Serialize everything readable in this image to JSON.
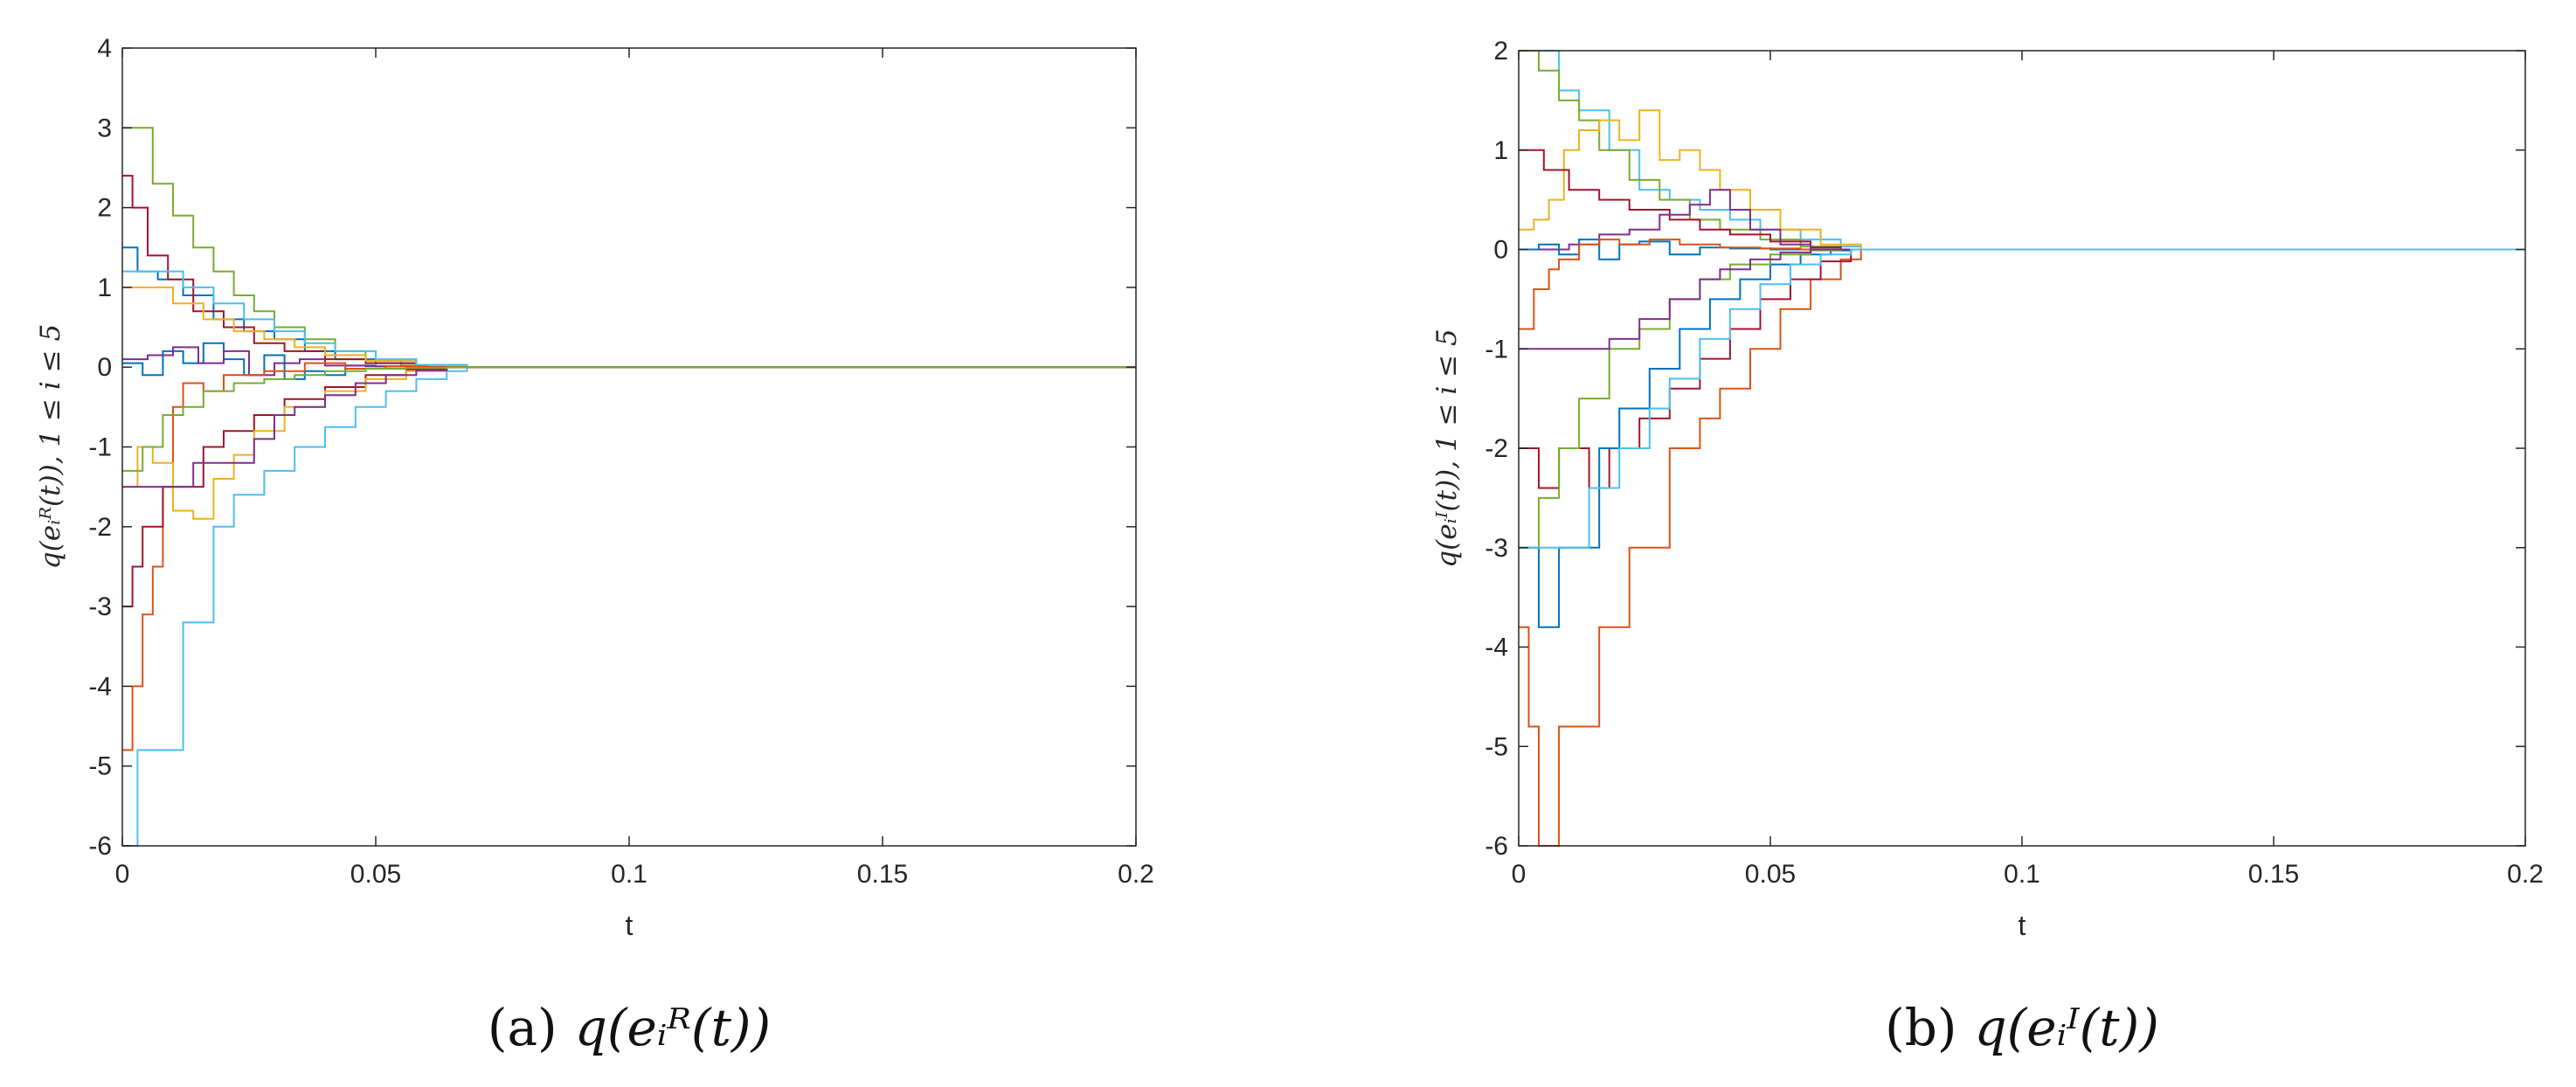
{
  "chart_data": [
    {
      "type": "line",
      "panel": "a",
      "caption_prefix": "(a)",
      "caption_math": "q(eᵢᴿ(t))",
      "xlabel": "t",
      "ylabel": "q(eᵢᴿ(t)), 1 ≤ i ≤ 5",
      "xlim": [
        0,
        0.2
      ],
      "ylim": [
        -6,
        4
      ],
      "xticks": [
        0,
        0.05,
        0.1,
        0.15,
        0.2
      ],
      "xtick_labels": [
        "0",
        "0.05",
        "0.1",
        "0.15",
        "0.2"
      ],
      "yticks": [
        4,
        3,
        2,
        1,
        0,
        -1,
        -2,
        -3,
        -4,
        -5,
        -6
      ],
      "ytick_labels": [
        "4",
        "3",
        "2",
        "1",
        "0",
        "-1",
        "-2",
        "-3",
        "-4",
        "-5",
        "-6"
      ],
      "series": [
        {
          "name": "s1",
          "color": "#77AC30",
          "x": [
            0,
            0.002,
            0.006,
            0.01,
            0.014,
            0.018,
            0.022,
            0.026,
            0.03,
            0.036,
            0.042,
            0.048,
            0.055,
            0.068,
            0.2
          ],
          "y": [
            3.0,
            3.0,
            2.3,
            1.9,
            1.5,
            1.2,
            0.9,
            0.7,
            0.5,
            0.35,
            0.2,
            0.08,
            0.02,
            0,
            0
          ]
        },
        {
          "name": "s2",
          "color": "#0072BD",
          "x": [
            0,
            0.003,
            0.007,
            0.012,
            0.018,
            0.024,
            0.03,
            0.036,
            0.042,
            0.05,
            0.058,
            0.068,
            0.2
          ],
          "y": [
            1.5,
            1.2,
            1.1,
            0.9,
            0.6,
            0.45,
            0.35,
            0.2,
            0.1,
            0.05,
            0.01,
            0,
            0
          ]
        },
        {
          "name": "s3",
          "color": "#A2142F",
          "x": [
            0,
            0.002,
            0.005,
            0.009,
            0.014,
            0.02,
            0.026,
            0.032,
            0.04,
            0.048,
            0.058,
            0.068,
            0.2
          ],
          "y": [
            2.4,
            2.0,
            1.4,
            1.1,
            0.7,
            0.5,
            0.3,
            0.2,
            0.1,
            0.05,
            0.01,
            0,
            0
          ]
        },
        {
          "name": "s4",
          "color": "#EDB120",
          "x": [
            0,
            0.004,
            0.01,
            0.016,
            0.022,
            0.028,
            0.034,
            0.04,
            0.048,
            0.058,
            0.068,
            0.2
          ],
          "y": [
            1.0,
            1.0,
            0.8,
            0.6,
            0.45,
            0.35,
            0.25,
            0.15,
            0.08,
            0.02,
            0,
            0
          ]
        },
        {
          "name": "s5",
          "color": "#4DBEEE",
          "x": [
            0,
            0.006,
            0.012,
            0.018,
            0.024,
            0.03,
            0.036,
            0.042,
            0.05,
            0.058,
            0.068,
            0.2
          ],
          "y": [
            1.2,
            1.2,
            1.0,
            0.8,
            0.6,
            0.45,
            0.3,
            0.2,
            0.1,
            0.03,
            0,
            0
          ]
        },
        {
          "name": "s6",
          "color": "#0072BD",
          "x": [
            0,
            0.004,
            0.008,
            0.012,
            0.016,
            0.02,
            0.024,
            0.028,
            0.032,
            0.036,
            0.04,
            0.044,
            0.05,
            0.058,
            0.2
          ],
          "y": [
            0.05,
            -0.1,
            0.2,
            0.05,
            0.3,
            0.1,
            -0.1,
            0.15,
            -0.15,
            -0.05,
            -0.1,
            0.02,
            0.01,
            0,
            0
          ]
        },
        {
          "name": "s7",
          "color": "#7E2F8E",
          "x": [
            0,
            0.005,
            0.01,
            0.015,
            0.02,
            0.025,
            0.03,
            0.035,
            0.04,
            0.048,
            0.056,
            0.2
          ],
          "y": [
            0.1,
            0.15,
            0.25,
            0.05,
            0.2,
            -0.1,
            0.05,
            0.1,
            0.02,
            0.01,
            0,
            0
          ]
        },
        {
          "name": "s8",
          "color": "#D95319",
          "x": [
            0,
            0.002,
            0.004,
            0.006,
            0.008,
            0.01,
            0.012,
            0.016,
            0.02,
            0.028,
            0.036,
            0.044,
            0.052,
            0.06,
            0.2
          ],
          "y": [
            -4.8,
            -4.0,
            -3.1,
            -2.5,
            -1.5,
            -0.5,
            -0.2,
            -0.3,
            -0.1,
            -0.05,
            0.05,
            -0.02,
            0.01,
            0,
            0
          ]
        },
        {
          "name": "s9",
          "color": "#4DBEEE",
          "x": [
            0,
            0.003,
            0.008,
            0.012,
            0.018,
            0.022,
            0.028,
            0.034,
            0.04,
            0.046,
            0.052,
            0.058,
            0.064,
            0.068,
            0.2
          ],
          "y": [
            -6.0,
            -4.8,
            -4.8,
            -3.2,
            -2.0,
            -1.6,
            -1.3,
            -1.0,
            -0.75,
            -0.5,
            -0.3,
            -0.15,
            -0.05,
            0,
            0
          ]
        },
        {
          "name": "s10",
          "color": "#A2142F",
          "x": [
            0,
            0.002,
            0.004,
            0.008,
            0.012,
            0.016,
            0.02,
            0.026,
            0.032,
            0.04,
            0.048,
            0.056,
            0.064,
            0.2
          ],
          "y": [
            -3.0,
            -2.5,
            -2.0,
            -1.5,
            -1.5,
            -1.0,
            -0.8,
            -0.6,
            -0.4,
            -0.25,
            -0.1,
            -0.03,
            0,
            0
          ]
        },
        {
          "name": "s11",
          "color": "#EDB120",
          "x": [
            0,
            0.003,
            0.006,
            0.01,
            0.014,
            0.018,
            0.022,
            0.026,
            0.032,
            0.04,
            0.048,
            0.056,
            0.064,
            0.2
          ],
          "y": [
            -1.5,
            -1.0,
            -1.2,
            -1.8,
            -1.9,
            -1.4,
            -1.1,
            -0.8,
            -0.5,
            -0.3,
            -0.15,
            -0.05,
            0,
            0
          ]
        },
        {
          "name": "s12",
          "color": "#7E2F8E",
          "x": [
            0,
            0.008,
            0.014,
            0.02,
            0.026,
            0.03,
            0.034,
            0.04,
            0.046,
            0.052,
            0.058,
            0.064,
            0.2
          ],
          "y": [
            -1.5,
            -1.5,
            -1.2,
            -1.2,
            -0.9,
            -0.6,
            -0.5,
            -0.35,
            -0.2,
            -0.1,
            -0.04,
            0,
            0
          ]
        },
        {
          "name": "s13",
          "color": "#77AC30",
          "x": [
            0,
            0.004,
            0.008,
            0.012,
            0.016,
            0.022,
            0.028,
            0.034,
            0.04,
            0.048,
            0.056,
            0.064,
            0.2
          ],
          "y": [
            -1.3,
            -1.0,
            -0.6,
            -0.5,
            -0.3,
            -0.2,
            -0.15,
            -0.1,
            -0.05,
            -0.02,
            -0.01,
            0,
            0
          ]
        }
      ]
    },
    {
      "type": "line",
      "panel": "b",
      "caption_prefix": "(b)",
      "caption_math": "q(eᵢᴵ(t))",
      "xlabel": "t",
      "ylabel": "q(eᵢᴵ(t)), 1 ≤ i ≤ 5",
      "xlim": [
        0,
        0.2
      ],
      "ylim": [
        -6,
        2
      ],
      "xticks": [
        0,
        0.05,
        0.1,
        0.15,
        0.2
      ],
      "xtick_labels": [
        "0",
        "0.05",
        "0.1",
        "0.15",
        "0.2"
      ],
      "yticks": [
        2,
        1,
        0,
        -1,
        -2,
        -3,
        -4,
        -5,
        -6
      ],
      "ytick_labels": [
        "2",
        "1",
        "0",
        "-1",
        "-2",
        "-3",
        "-4",
        "-5",
        "-6"
      ],
      "series": [
        {
          "name": "s1",
          "color": "#4DBEEE",
          "x": [
            0,
            0.004,
            0.008,
            0.012,
            0.018,
            0.024,
            0.03,
            0.036,
            0.042,
            0.048,
            0.056,
            0.064,
            0.068,
            0.2
          ],
          "y": [
            2.0,
            2.0,
            1.6,
            1.4,
            1.0,
            0.6,
            0.5,
            0.4,
            0.3,
            0.2,
            0.1,
            0.03,
            0,
            0
          ]
        },
        {
          "name": "s2",
          "color": "#77AC30",
          "x": [
            0,
            0.004,
            0.008,
            0.012,
            0.016,
            0.022,
            0.028,
            0.034,
            0.04,
            0.048,
            0.056,
            0.064,
            0.2
          ],
          "y": [
            2.0,
            1.8,
            1.5,
            1.3,
            1.0,
            0.7,
            0.5,
            0.3,
            0.2,
            0.1,
            0.03,
            0,
            0
          ]
        },
        {
          "name": "s3",
          "color": "#EDB120",
          "x": [
            0,
            0.003,
            0.006,
            0.009,
            0.012,
            0.016,
            0.02,
            0.024,
            0.028,
            0.032,
            0.036,
            0.04,
            0.046,
            0.052,
            0.06,
            0.068,
            0.2
          ],
          "y": [
            0.2,
            0.3,
            0.5,
            1.0,
            1.2,
            1.3,
            1.1,
            1.4,
            0.9,
            1.0,
            0.8,
            0.6,
            0.4,
            0.2,
            0.05,
            0,
            0
          ]
        },
        {
          "name": "s4",
          "color": "#A2142F",
          "x": [
            0,
            0.002,
            0.005,
            0.01,
            0.016,
            0.022,
            0.03,
            0.036,
            0.042,
            0.05,
            0.058,
            0.064,
            0.2
          ],
          "y": [
            1.0,
            1.0,
            0.8,
            0.6,
            0.5,
            0.4,
            0.3,
            0.2,
            0.15,
            0.08,
            0.02,
            0,
            0
          ]
        },
        {
          "name": "s5",
          "color": "#7E2F8E",
          "x": [
            0,
            0.01,
            0.016,
            0.022,
            0.028,
            0.034,
            0.038,
            0.042,
            0.046,
            0.052,
            0.058,
            0.2
          ],
          "y": [
            0.0,
            0.05,
            0.15,
            0.2,
            0.35,
            0.45,
            0.6,
            0.4,
            0.2,
            0.05,
            0,
            0
          ]
        },
        {
          "name": "s6",
          "color": "#0072BD",
          "x": [
            0,
            0.004,
            0.008,
            0.012,
            0.016,
            0.02,
            0.024,
            0.03,
            0.036,
            0.042,
            0.05,
            0.2
          ],
          "y": [
            0.0,
            0.05,
            -0.05,
            0.1,
            -0.1,
            0.05,
            0.08,
            -0.05,
            0.02,
            0.01,
            0,
            0
          ]
        },
        {
          "name": "s7",
          "color": "#D95319",
          "x": [
            0,
            0.003,
            0.006,
            0.008,
            0.012,
            0.016,
            0.02,
            0.026,
            0.032,
            0.04,
            0.048,
            0.056,
            0.2
          ],
          "y": [
            -0.8,
            -0.4,
            -0.2,
            -0.1,
            0.05,
            0.1,
            0.05,
            0.1,
            0.05,
            0.02,
            0.01,
            0,
            0
          ]
        },
        {
          "name": "s8",
          "color": "#D95319",
          "x": [
            0,
            0.002,
            0.004,
            0.006,
            0.008,
            0.012,
            0.016,
            0.022,
            0.03,
            0.036,
            0.04,
            0.046,
            0.052,
            0.058,
            0.064,
            0.068,
            0.2
          ],
          "y": [
            -3.8,
            -4.8,
            -6.0,
            -6.0,
            -4.8,
            -4.8,
            -3.8,
            -3.0,
            -2.0,
            -1.7,
            -1.4,
            -1.0,
            -0.6,
            -0.3,
            -0.1,
            0,
            0
          ]
        },
        {
          "name": "s9",
          "color": "#A2142F",
          "x": [
            0,
            0.004,
            0.008,
            0.014,
            0.018,
            0.024,
            0.03,
            0.036,
            0.042,
            0.048,
            0.054,
            0.06,
            0.066,
            0.2
          ],
          "y": [
            -2.0,
            -2.4,
            -2.0,
            -2.4,
            -2.0,
            -1.7,
            -1.4,
            -1.1,
            -0.8,
            -0.5,
            -0.3,
            -0.12,
            0,
            0
          ]
        },
        {
          "name": "s10",
          "color": "#0072BD",
          "x": [
            0,
            0.004,
            0.008,
            0.012,
            0.016,
            0.02,
            0.026,
            0.032,
            0.038,
            0.044,
            0.05,
            0.056,
            0.062,
            0.066,
            0.2
          ],
          "y": [
            -3.0,
            -3.8,
            -3.0,
            -3.0,
            -2.0,
            -1.6,
            -1.2,
            -0.8,
            -0.5,
            -0.3,
            -0.15,
            -0.05,
            -0.01,
            0,
            0
          ]
        },
        {
          "name": "s11",
          "color": "#77AC30",
          "x": [
            0,
            0.004,
            0.008,
            0.012,
            0.018,
            0.024,
            0.03,
            0.036,
            0.042,
            0.05,
            0.058,
            0.064,
            0.2
          ],
          "y": [
            -3.0,
            -2.5,
            -2.0,
            -1.5,
            -1.0,
            -0.8,
            -0.5,
            -0.3,
            -0.15,
            -0.05,
            -0.01,
            0,
            0
          ]
        },
        {
          "name": "s12",
          "color": "#7E2F8E",
          "x": [
            0,
            0.006,
            0.012,
            0.018,
            0.024,
            0.03,
            0.036,
            0.04,
            0.046,
            0.052,
            0.058,
            0.2
          ],
          "y": [
            -1.0,
            -1.0,
            -1.0,
            -0.9,
            -0.7,
            -0.5,
            -0.3,
            -0.2,
            -0.1,
            -0.03,
            0,
            0
          ]
        },
        {
          "name": "s13",
          "color": "#4DBEEE",
          "x": [
            0,
            0.01,
            0.014,
            0.02,
            0.026,
            0.03,
            0.036,
            0.042,
            0.048,
            0.054,
            0.06,
            0.066,
            0.2
          ],
          "y": [
            -3.0,
            -3.0,
            -2.4,
            -2.0,
            -1.6,
            -1.3,
            -0.9,
            -0.6,
            -0.35,
            -0.15,
            -0.05,
            0,
            0
          ]
        }
      ]
    }
  ]
}
